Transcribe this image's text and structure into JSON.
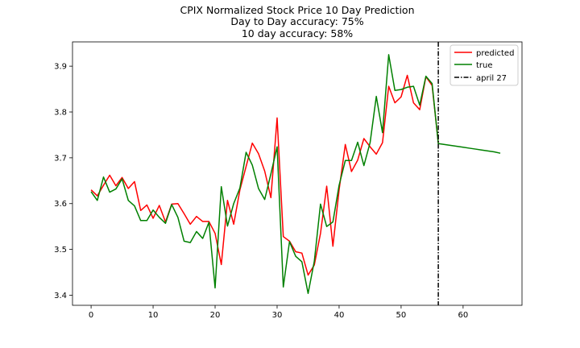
{
  "chart_data": {
    "type": "line",
    "title_lines": [
      "CPIX Normalized Stock Price 10 Day Prediction",
      "Day to Day accuracy: 75%",
      "10 day accuracy: 58%"
    ],
    "xlabel": "",
    "ylabel": "",
    "xlim": [
      -3,
      69.5
    ],
    "ylim": [
      3.378,
      3.953
    ],
    "x_ticks": [
      0,
      10,
      20,
      30,
      40,
      50,
      60
    ],
    "y_ticks": [
      3.4,
      3.5,
      3.6,
      3.7,
      3.8,
      3.9
    ],
    "y_tick_labels": [
      "3.4",
      "3.5",
      "3.6",
      "3.7",
      "3.8",
      "3.9"
    ],
    "grid": false,
    "legend_position": "top-right",
    "series": [
      {
        "name": "predicted",
        "color": "#ff0000",
        "style": "solid",
        "x": [
          0,
          1,
          2,
          3,
          4,
          5,
          6,
          7,
          8,
          9,
          10,
          11,
          12,
          13,
          14,
          15,
          16,
          17,
          18,
          19,
          20,
          21,
          22,
          23,
          24,
          25,
          26,
          27,
          28,
          29,
          30,
          31,
          32,
          33,
          34,
          35,
          36,
          37,
          38,
          39,
          40,
          41,
          42,
          43,
          44,
          45,
          46,
          47,
          48,
          49,
          50,
          51,
          52,
          53,
          54,
          55,
          56
        ],
        "values": [
          3.63,
          3.617,
          3.64,
          3.662,
          3.639,
          3.657,
          3.633,
          3.648,
          3.585,
          3.597,
          3.568,
          3.596,
          3.56,
          3.599,
          3.6,
          3.578,
          3.555,
          3.572,
          3.561,
          3.561,
          3.535,
          3.467,
          3.607,
          3.555,
          3.63,
          3.681,
          3.732,
          3.709,
          3.671,
          3.613,
          3.787,
          3.528,
          3.518,
          3.495,
          3.492,
          3.444,
          3.466,
          3.535,
          3.638,
          3.507,
          3.63,
          3.729,
          3.67,
          3.695,
          3.742,
          3.724,
          3.708,
          3.733,
          3.856,
          3.82,
          3.833,
          3.88,
          3.82,
          3.805,
          3.877,
          3.858,
          3.733
        ]
      },
      {
        "name": "true",
        "color": "#008000",
        "style": "solid",
        "x": [
          0,
          1,
          2,
          3,
          4,
          5,
          6,
          7,
          8,
          9,
          10,
          11,
          12,
          13,
          14,
          15,
          16,
          17,
          18,
          19,
          20,
          21,
          22,
          23,
          24,
          25,
          26,
          27,
          28,
          29,
          30,
          31,
          32,
          33,
          34,
          35,
          36,
          37,
          38,
          39,
          40,
          41,
          42,
          43,
          44,
          45,
          46,
          47,
          48,
          49,
          50,
          51,
          52,
          53,
          54,
          55,
          56,
          57,
          58,
          59,
          60,
          61,
          62,
          63,
          64,
          65,
          66
        ],
        "values": [
          3.626,
          3.607,
          3.658,
          3.625,
          3.632,
          3.654,
          3.607,
          3.595,
          3.563,
          3.563,
          3.586,
          3.57,
          3.557,
          3.598,
          3.57,
          3.518,
          3.515,
          3.539,
          3.524,
          3.559,
          3.416,
          3.637,
          3.551,
          3.6,
          3.634,
          3.712,
          3.684,
          3.633,
          3.609,
          3.665,
          3.724,
          3.418,
          3.517,
          3.485,
          3.473,
          3.404,
          3.474,
          3.599,
          3.55,
          3.56,
          3.64,
          3.694,
          3.694,
          3.734,
          3.683,
          3.733,
          3.834,
          3.755,
          3.925,
          3.847,
          3.849,
          3.854,
          3.856,
          3.815,
          3.878,
          3.862,
          3.731,
          3.729,
          3.727,
          3.725,
          3.723,
          3.721,
          3.719,
          3.717,
          3.715,
          3.713,
          3.71
        ]
      },
      {
        "name": "april 27",
        "color": "#000000",
        "style": "dashdot",
        "vline_x": 56
      }
    ]
  }
}
